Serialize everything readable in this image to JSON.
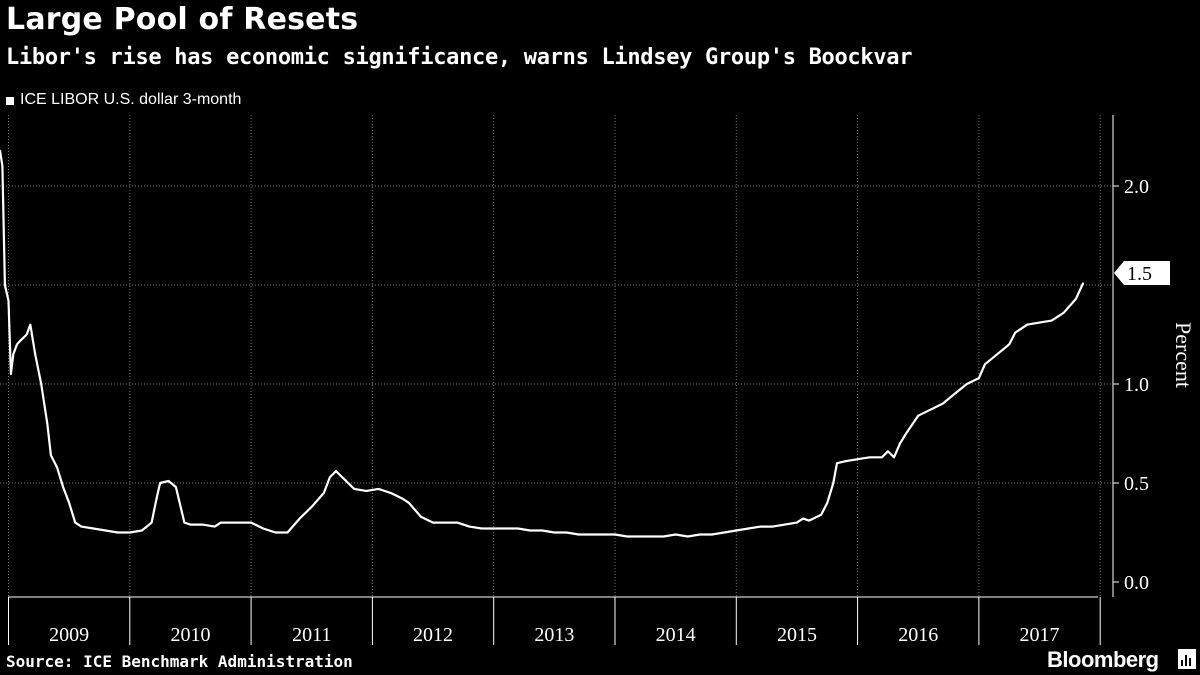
{
  "header": {
    "title": "Large Pool of Resets",
    "subtitle": "Libor's rise has economic significance, warns Lindsey Group's Boockvar"
  },
  "footer": {
    "source": "Source: ICE Benchmark Administration",
    "brand": "Bloomberg"
  },
  "colors": {
    "background": "#000000",
    "line": "#ffffff",
    "grid": "#777777"
  },
  "chart_data": {
    "type": "line",
    "title": "Large Pool of Resets",
    "subtitle": "Libor's rise has economic significance, warns Lindsey Group's Boockvar",
    "xlabel": "",
    "ylabel": "Percent",
    "ylim": [
      0,
      2.4
    ],
    "yticks": [
      {
        "value": 0.0,
        "label": "0.0"
      },
      {
        "value": 0.5,
        "label": "0.5"
      },
      {
        "value": 1.0,
        "label": "1.0"
      },
      {
        "value": 2.0,
        "label": "2.0"
      }
    ],
    "xlim": [
      2008.93,
      2017.93
    ],
    "year_labels": [
      "2009",
      "2010",
      "2011",
      "2012",
      "2013",
      "2014",
      "2015",
      "2016",
      "2017"
    ],
    "legend": [
      {
        "name": "ICE LIBOR U.S. dollar 3-month",
        "position": "top-left"
      }
    ],
    "last_value_label": "1.5",
    "last_value": 1.51,
    "grid": true,
    "series": [
      {
        "name": "ICE LIBOR U.S. dollar 3-month",
        "points": [
          [
            2008.93,
            2.18
          ],
          [
            2008.95,
            2.1
          ],
          [
            2008.97,
            1.5
          ],
          [
            2009.0,
            1.42
          ],
          [
            2009.02,
            1.05
          ],
          [
            2009.04,
            1.15
          ],
          [
            2009.07,
            1.2
          ],
          [
            2009.1,
            1.22
          ],
          [
            2009.15,
            1.25
          ],
          [
            2009.18,
            1.3
          ],
          [
            2009.22,
            1.15
          ],
          [
            2009.27,
            1.0
          ],
          [
            2009.32,
            0.8
          ],
          [
            2009.35,
            0.64
          ],
          [
            2009.4,
            0.58
          ],
          [
            2009.45,
            0.48
          ],
          [
            2009.5,
            0.4
          ],
          [
            2009.55,
            0.3
          ],
          [
            2009.6,
            0.28
          ],
          [
            2009.7,
            0.27
          ],
          [
            2009.8,
            0.26
          ],
          [
            2009.9,
            0.25
          ],
          [
            2010.0,
            0.25
          ],
          [
            2010.1,
            0.26
          ],
          [
            2010.18,
            0.3
          ],
          [
            2010.22,
            0.42
          ],
          [
            2010.25,
            0.5
          ],
          [
            2010.32,
            0.51
          ],
          [
            2010.38,
            0.48
          ],
          [
            2010.45,
            0.3
          ],
          [
            2010.5,
            0.29
          ],
          [
            2010.6,
            0.29
          ],
          [
            2010.7,
            0.28
          ],
          [
            2010.75,
            0.3
          ],
          [
            2010.85,
            0.3
          ],
          [
            2011.0,
            0.3
          ],
          [
            2011.1,
            0.27
          ],
          [
            2011.2,
            0.25
          ],
          [
            2011.3,
            0.25
          ],
          [
            2011.4,
            0.32
          ],
          [
            2011.5,
            0.38
          ],
          [
            2011.6,
            0.45
          ],
          [
            2011.65,
            0.53
          ],
          [
            2011.7,
            0.56
          ],
          [
            2011.75,
            0.53
          ],
          [
            2011.85,
            0.47
          ],
          [
            2011.95,
            0.46
          ],
          [
            2012.05,
            0.47
          ],
          [
            2012.15,
            0.45
          ],
          [
            2012.25,
            0.42
          ],
          [
            2012.3,
            0.4
          ],
          [
            2012.4,
            0.33
          ],
          [
            2012.5,
            0.3
          ],
          [
            2012.6,
            0.3
          ],
          [
            2012.7,
            0.3
          ],
          [
            2012.8,
            0.28
          ],
          [
            2012.9,
            0.27
          ],
          [
            2013.0,
            0.27
          ],
          [
            2013.1,
            0.27
          ],
          [
            2013.2,
            0.27
          ],
          [
            2013.3,
            0.26
          ],
          [
            2013.4,
            0.26
          ],
          [
            2013.5,
            0.25
          ],
          [
            2013.6,
            0.25
          ],
          [
            2013.7,
            0.24
          ],
          [
            2013.8,
            0.24
          ],
          [
            2013.9,
            0.24
          ],
          [
            2014.0,
            0.24
          ],
          [
            2014.1,
            0.23
          ],
          [
            2014.2,
            0.23
          ],
          [
            2014.3,
            0.23
          ],
          [
            2014.4,
            0.23
          ],
          [
            2014.5,
            0.24
          ],
          [
            2014.6,
            0.23
          ],
          [
            2014.7,
            0.24
          ],
          [
            2014.8,
            0.24
          ],
          [
            2014.9,
            0.25
          ],
          [
            2015.0,
            0.26
          ],
          [
            2015.1,
            0.27
          ],
          [
            2015.2,
            0.28
          ],
          [
            2015.3,
            0.28
          ],
          [
            2015.4,
            0.29
          ],
          [
            2015.5,
            0.3
          ],
          [
            2015.55,
            0.32
          ],
          [
            2015.6,
            0.31
          ],
          [
            2015.7,
            0.34
          ],
          [
            2015.75,
            0.4
          ],
          [
            2015.8,
            0.5
          ],
          [
            2015.83,
            0.6
          ],
          [
            2015.9,
            0.61
          ],
          [
            2016.0,
            0.62
          ],
          [
            2016.1,
            0.63
          ],
          [
            2016.2,
            0.63
          ],
          [
            2016.25,
            0.66
          ],
          [
            2016.3,
            0.63
          ],
          [
            2016.35,
            0.7
          ],
          [
            2016.4,
            0.75
          ],
          [
            2016.5,
            0.84
          ],
          [
            2016.6,
            0.87
          ],
          [
            2016.7,
            0.9
          ],
          [
            2016.8,
            0.95
          ],
          [
            2016.9,
            1.0
          ],
          [
            2017.0,
            1.03
          ],
          [
            2017.05,
            1.1
          ],
          [
            2017.15,
            1.15
          ],
          [
            2017.25,
            1.2
          ],
          [
            2017.3,
            1.26
          ],
          [
            2017.4,
            1.3
          ],
          [
            2017.5,
            1.31
          ],
          [
            2017.6,
            1.32
          ],
          [
            2017.7,
            1.36
          ],
          [
            2017.8,
            1.43
          ],
          [
            2017.86,
            1.51
          ]
        ]
      }
    ]
  }
}
